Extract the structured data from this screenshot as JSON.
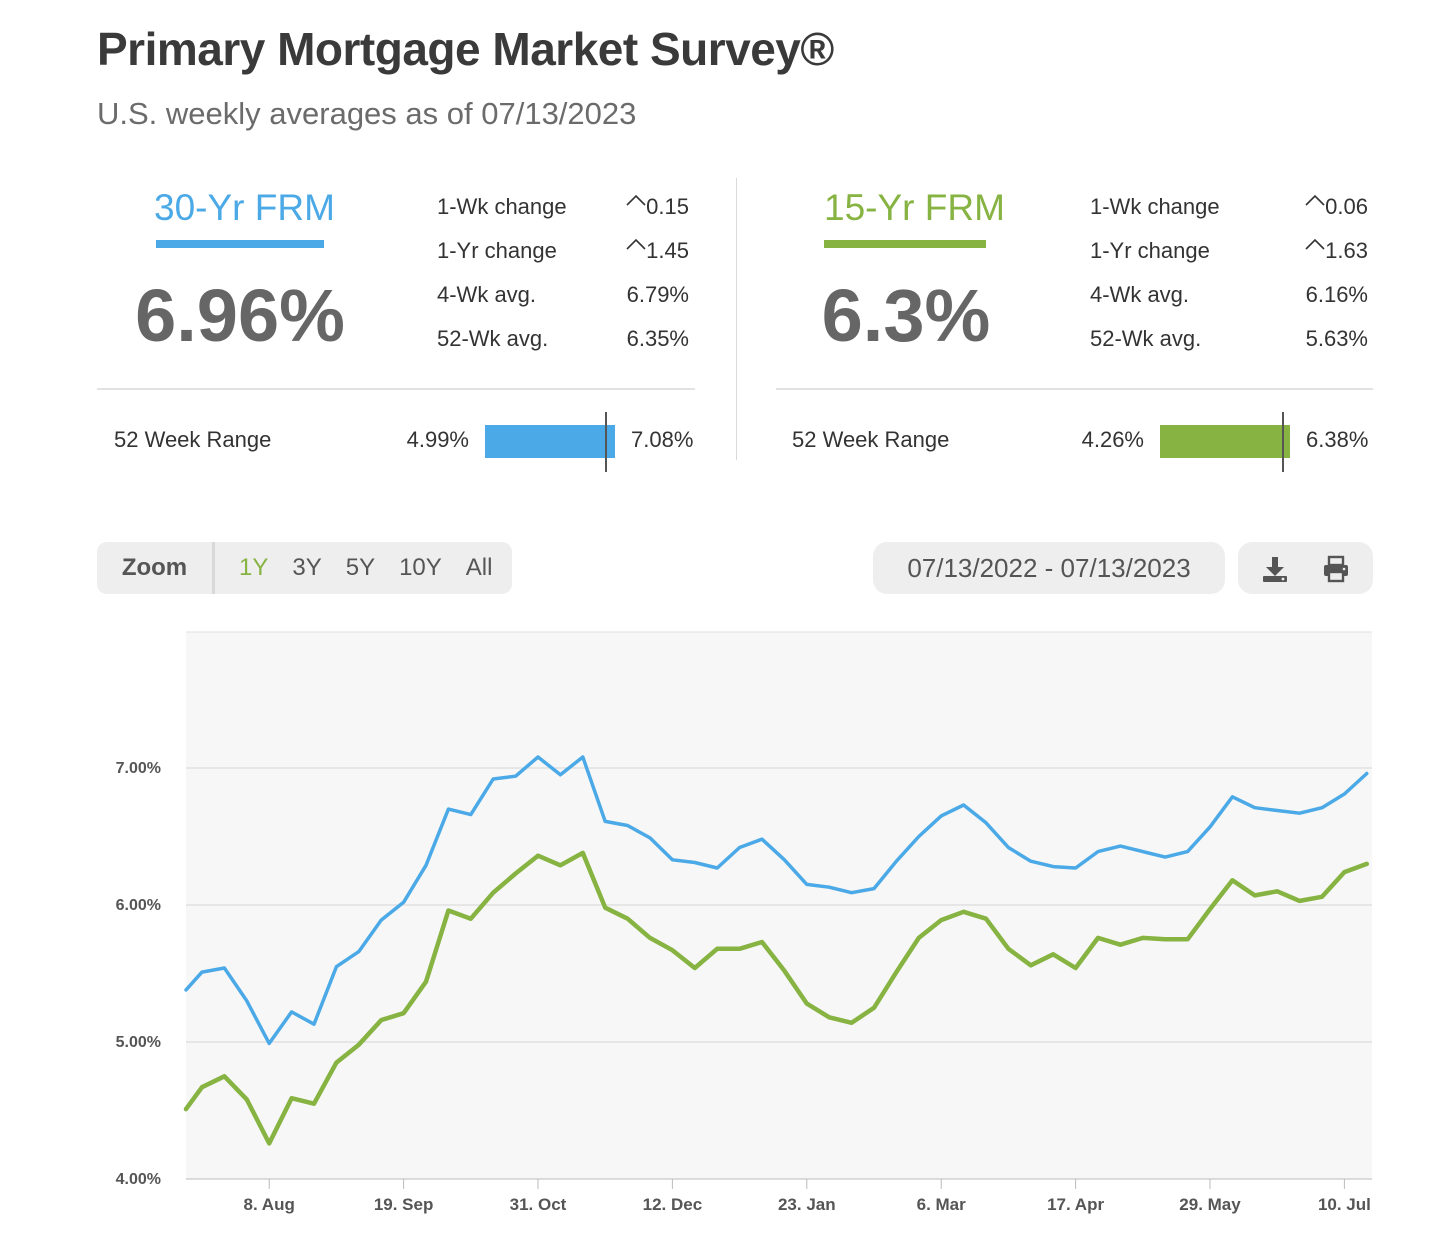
{
  "header": {
    "title": "Primary Mortgage Market Survey®",
    "subtitle": "U.S. weekly averages as of 07/13/2023"
  },
  "frm30": {
    "name": "30-Yr FRM",
    "rate": "6.96%",
    "color": "#4aa9e6",
    "stats": [
      {
        "label": "1-Wk change",
        "value": "0.15",
        "up": true
      },
      {
        "label": "1-Yr change",
        "value": "1.45",
        "up": true
      },
      {
        "label": "4-Wk avg.",
        "value": "6.79%"
      },
      {
        "label": "52-Wk avg.",
        "value": "6.35%"
      }
    ],
    "range_label": "52 Week Range",
    "range_low": "4.99%",
    "range_high": "7.08%"
  },
  "frm15": {
    "name": "15-Yr FRM",
    "rate": "6.3%",
    "color": "#86b341",
    "stats": [
      {
        "label": "1-Wk change",
        "value": "0.06",
        "up": true
      },
      {
        "label": "1-Yr change",
        "value": "1.63",
        "up": true
      },
      {
        "label": "4-Wk avg.",
        "value": "6.16%"
      },
      {
        "label": "52-Wk avg.",
        "value": "5.63%"
      }
    ],
    "range_label": "52 Week Range",
    "range_low": "4.26%",
    "range_high": "6.38%"
  },
  "controls": {
    "zoom_label": "Zoom",
    "zoom_options": [
      "1Y",
      "3Y",
      "5Y",
      "10Y",
      "All"
    ],
    "zoom_active": "1Y",
    "date_range": "07/13/2022 - 07/13/2023",
    "download_icon": "download-icon",
    "print_icon": "print-icon"
  },
  "chart_data": {
    "type": "line",
    "title": "",
    "xlabel": "",
    "ylabel": "",
    "ylim": [
      4.0,
      7.0
    ],
    "y_ticks": [
      "4.00%",
      "5.00%",
      "6.00%",
      "7.00%"
    ],
    "x_tick_labels": [
      "8. Aug",
      "19. Sep",
      "31. Oct",
      "12. Dec",
      "23. Jan",
      "6. Mar",
      "17. Apr",
      "29. May",
      "10. Jul"
    ],
    "x_tick_week_index": [
      3,
      9,
      15,
      21,
      27,
      33,
      39,
      45,
      51
    ],
    "grid": true,
    "legend": "none",
    "x": [
      "2022-07-14",
      "2022-07-21",
      "2022-07-28",
      "2022-08-04",
      "2022-08-11",
      "2022-08-18",
      "2022-08-25",
      "2022-09-01",
      "2022-09-08",
      "2022-09-15",
      "2022-09-22",
      "2022-09-29",
      "2022-10-06",
      "2022-10-13",
      "2022-10-20",
      "2022-10-27",
      "2022-11-03",
      "2022-11-10",
      "2022-11-17",
      "2022-11-23",
      "2022-12-01",
      "2022-12-08",
      "2022-12-15",
      "2022-12-22",
      "2022-12-29",
      "2023-01-05",
      "2023-01-12",
      "2023-01-19",
      "2023-01-26",
      "2023-02-02",
      "2023-02-09",
      "2023-02-16",
      "2023-02-23",
      "2023-03-02",
      "2023-03-09",
      "2023-03-16",
      "2023-03-23",
      "2023-03-30",
      "2023-04-06",
      "2023-04-13",
      "2023-04-20",
      "2023-04-27",
      "2023-05-04",
      "2023-05-11",
      "2023-05-18",
      "2023-05-25",
      "2023-06-01",
      "2023-06-08",
      "2023-06-15",
      "2023-06-22",
      "2023-06-29",
      "2023-07-06",
      "2023-07-13"
    ],
    "series": [
      {
        "color": "#4aa9e6",
        "values": [
          5.51,
          5.54,
          5.3,
          4.99,
          5.22,
          5.13,
          5.55,
          5.66,
          5.89,
          6.02,
          6.29,
          6.7,
          6.66,
          6.92,
          6.94,
          7.08,
          6.95,
          7.08,
          6.61,
          6.58,
          6.49,
          6.33,
          6.31,
          6.27,
          6.42,
          6.48,
          6.33,
          6.15,
          6.13,
          6.09,
          6.12,
          6.32,
          6.5,
          6.65,
          6.73,
          6.6,
          6.42,
          6.32,
          6.28,
          6.27,
          6.39,
          6.43,
          6.39,
          6.35,
          6.39,
          6.57,
          6.79,
          6.71,
          6.69,
          6.67,
          6.71,
          6.81,
          6.96
        ]
      },
      {
        "color": "#86b341",
        "values": [
          4.67,
          4.75,
          4.58,
          4.26,
          4.59,
          4.55,
          4.85,
          4.98,
          5.16,
          5.21,
          5.44,
          5.96,
          5.9,
          6.09,
          6.23,
          6.36,
          6.29,
          6.38,
          5.98,
          5.9,
          5.76,
          5.67,
          5.54,
          5.68,
          5.68,
          5.73,
          5.52,
          5.28,
          5.18,
          5.14,
          5.25,
          5.51,
          5.76,
          5.89,
          5.95,
          5.9,
          5.68,
          5.56,
          5.64,
          5.54,
          5.76,
          5.71,
          5.76,
          5.75,
          5.75,
          5.97,
          6.18,
          6.07,
          6.1,
          6.03,
          6.06,
          6.24,
          6.3
        ]
      }
    ]
  }
}
